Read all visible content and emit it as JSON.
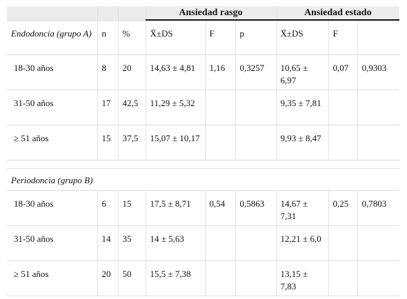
{
  "header": {
    "group1": "Ansiedad rasgo",
    "group2": "Ansiedad estado"
  },
  "sectionA": {
    "title": "Endodoncia (grupo A)",
    "columns": [
      "n",
      "%",
      "X̄±DS",
      "F",
      "p",
      "X̄±DS",
      "F",
      ""
    ],
    "rows": [
      {
        "label": "18-30 años",
        "n": "8",
        "pct": "20",
        "rasgo": "14,63 ± 4,81",
        "f1": "1,16",
        "p1": "0,3257",
        "estado": "10,65 ± 6,97",
        "f2": "0,07",
        "p2": "0,9303"
      },
      {
        "label": "31-50 años",
        "n": "17",
        "pct": "42,5",
        "rasgo": "11,29 ± 5,32",
        "f1": "",
        "p1": "",
        "estado": "9,35 ± 7,81",
        "f2": "",
        "p2": ""
      },
      {
        "label": "≥ 51 años",
        "n": "15",
        "pct": "37,5",
        "rasgo": "15,07 ± 10,17",
        "f1": "",
        "p1": "",
        "estado": "9,93 ± 8,47",
        "f2": "",
        "p2": ""
      }
    ]
  },
  "sectionB": {
    "title": "Periodoncia (grupo B)",
    "rows": [
      {
        "label": "18-30 años",
        "n": "6",
        "pct": "15",
        "rasgo": "17,5 ± 8,71",
        "f1": "0,54",
        "p1": "0,5863",
        "estado": "14,67 ± 7,31",
        "f2": "0,25",
        "p2": "0,7803"
      },
      {
        "label": "31-50 años",
        "n": "14",
        "pct": "35",
        "rasgo": "14 ± 5,63",
        "f1": "",
        "p1": "",
        "estado": "12,21 ± 6,0",
        "f2": "",
        "p2": ""
      },
      {
        "label": "≥ 51 años",
        "n": "20",
        "pct": "50",
        "rasgo": "15,5 ± 7,38",
        "f1": "",
        "p1": "",
        "estado": "13,15 ± 7,83",
        "f2": "",
        "p2": ""
      }
    ]
  }
}
